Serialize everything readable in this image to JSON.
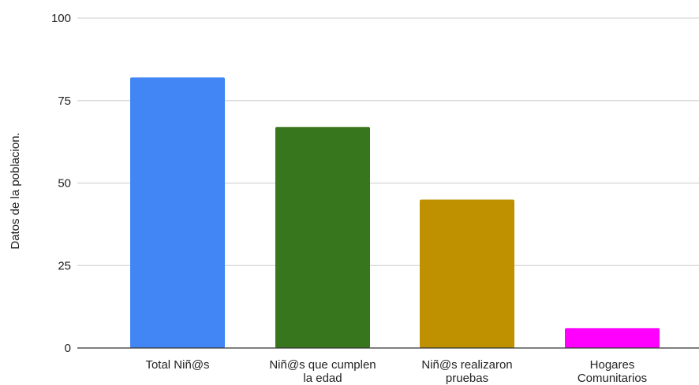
{
  "chart_data": {
    "type": "bar",
    "title": "",
    "xlabel": "",
    "ylabel": "Datos de la poblacion.",
    "ylim": [
      0,
      100
    ],
    "yticks": [
      0,
      25,
      50,
      75,
      100
    ],
    "grid": true,
    "categories": [
      [
        "Total Niñ@s"
      ],
      [
        "Niñ@s que cumplen",
        "la edad"
      ],
      [
        "Niñ@s realizaron",
        "pruebas"
      ],
      [
        "Hogares",
        "Comunitarios"
      ]
    ],
    "values": [
      82,
      67,
      45,
      6
    ],
    "colors": [
      "#4285f4",
      "#38761d",
      "#bf9000",
      "#ff00ff"
    ]
  }
}
